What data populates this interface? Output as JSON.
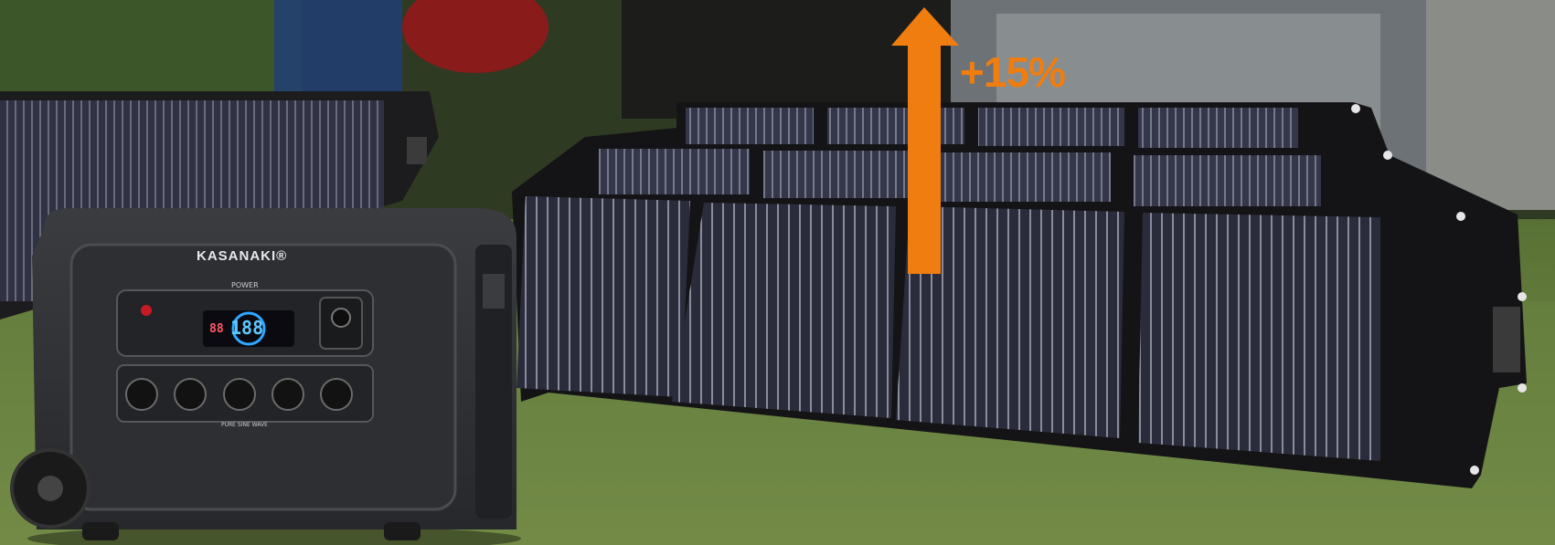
{
  "overlay": {
    "gain_label": "+15%",
    "arrow_color": "#f07d10"
  },
  "station": {
    "brand": "KASANAKI®",
    "power_label": "POWER",
    "display_left": "88",
    "display_center": "188",
    "footer_label": "PURE SINE WAVE"
  },
  "colors": {
    "grass": "#5f7a3a",
    "panel_cell": "#262838",
    "frame": "#141416"
  }
}
